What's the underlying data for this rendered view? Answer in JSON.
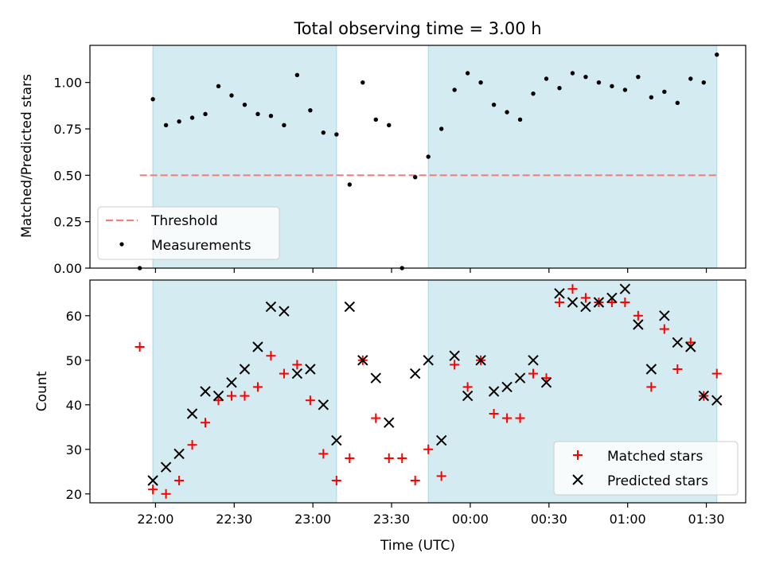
{
  "chart_data": [
    {
      "type": "scatter",
      "title": "Total observing time = 3.00 h",
      "ylabel": "Matched/Predicted stars",
      "ylim": [
        0,
        1.2
      ],
      "yticks": [
        "0.00",
        "0.25",
        "0.50",
        "0.75",
        "1.00"
      ],
      "shaded_intervals": [
        [
          "21:59",
          "23:09"
        ],
        [
          "23:44",
          "01:34"
        ]
      ],
      "threshold": {
        "name": "Threshold",
        "value": 0.5,
        "x_start": "21:54",
        "x_end": "01:34",
        "color": "#f08080"
      },
      "series": [
        {
          "name": "Measurements",
          "marker": "dot",
          "color": "#000000",
          "points": [
            [
              "21:54",
              0.0
            ],
            [
              "21:59",
              0.91
            ],
            [
              "22:04",
              0.77
            ],
            [
              "22:09",
              0.79
            ],
            [
              "22:14",
              0.81
            ],
            [
              "22:19",
              0.83
            ],
            [
              "22:24",
              0.98
            ],
            [
              "22:29",
              0.93
            ],
            [
              "22:34",
              0.88
            ],
            [
              "22:39",
              0.83
            ],
            [
              "22:44",
              0.82
            ],
            [
              "22:49",
              0.77
            ],
            [
              "22:54",
              1.04
            ],
            [
              "22:59",
              0.85
            ],
            [
              "23:04",
              0.73
            ],
            [
              "23:09",
              0.72
            ],
            [
              "23:14",
              0.45
            ],
            [
              "23:19",
              1.0
            ],
            [
              "23:24",
              0.8
            ],
            [
              "23:29",
              0.77
            ],
            [
              "23:34",
              0.0
            ],
            [
              "23:39",
              0.49
            ],
            [
              "23:44",
              0.6
            ],
            [
              "23:49",
              0.75
            ],
            [
              "23:54",
              0.96
            ],
            [
              "23:59",
              1.05
            ],
            [
              "00:04",
              1.0
            ],
            [
              "00:09",
              0.88
            ],
            [
              "00:14",
              0.84
            ],
            [
              "00:19",
              0.8
            ],
            [
              "00:24",
              0.94
            ],
            [
              "00:29",
              1.02
            ],
            [
              "00:34",
              0.97
            ],
            [
              "00:39",
              1.05
            ],
            [
              "00:44",
              1.03
            ],
            [
              "00:49",
              1.0
            ],
            [
              "00:54",
              0.98
            ],
            [
              "00:59",
              0.96
            ],
            [
              "01:04",
              1.03
            ],
            [
              "01:09",
              0.92
            ],
            [
              "01:14",
              0.95
            ],
            [
              "01:19",
              0.89
            ],
            [
              "01:24",
              1.02
            ],
            [
              "01:29",
              1.0
            ],
            [
              "01:34",
              1.15
            ]
          ]
        }
      ],
      "legend": {
        "placement": "lower-left"
      }
    },
    {
      "type": "scatter",
      "xlabel": "Time (UTC)",
      "ylabel": "Count",
      "ylim": [
        18,
        68
      ],
      "yticks": [
        "20",
        "30",
        "40",
        "50",
        "60"
      ],
      "xticks": [
        "22:00",
        "22:30",
        "23:00",
        "23:30",
        "00:00",
        "00:30",
        "01:00",
        "01:30"
      ],
      "shaded_intervals": [
        [
          "21:59",
          "23:09"
        ],
        [
          "23:44",
          "01:34"
        ]
      ],
      "series": [
        {
          "name": "Matched stars",
          "marker": "plus",
          "color": "#ff0000",
          "points": [
            [
              "21:54",
              53
            ],
            [
              "21:59",
              21
            ],
            [
              "22:04",
              20
            ],
            [
              "22:09",
              23
            ],
            [
              "22:14",
              31
            ],
            [
              "22:19",
              36
            ],
            [
              "22:24",
              41
            ],
            [
              "22:29",
              42
            ],
            [
              "22:34",
              42
            ],
            [
              "22:39",
              44
            ],
            [
              "22:44",
              51
            ],
            [
              "22:49",
              47
            ],
            [
              "22:54",
              49
            ],
            [
              "22:59",
              41
            ],
            [
              "23:04",
              29
            ],
            [
              "23:09",
              23
            ],
            [
              "23:14",
              28
            ],
            [
              "23:19",
              50
            ],
            [
              "23:24",
              37
            ],
            [
              "23:29",
              28
            ],
            [
              "23:34",
              28
            ],
            [
              "23:39",
              23
            ],
            [
              "23:44",
              30
            ],
            [
              "23:49",
              24
            ],
            [
              "23:54",
              49
            ],
            [
              "23:59",
              44
            ],
            [
              "00:04",
              50
            ],
            [
              "00:09",
              38
            ],
            [
              "00:14",
              37
            ],
            [
              "00:19",
              37
            ],
            [
              "00:24",
              47
            ],
            [
              "00:29",
              46
            ],
            [
              "00:34",
              63
            ],
            [
              "00:39",
              66
            ],
            [
              "00:44",
              64
            ],
            [
              "00:49",
              63
            ],
            [
              "00:54",
              63
            ],
            [
              "00:59",
              63
            ],
            [
              "01:04",
              60
            ],
            [
              "01:09",
              44
            ],
            [
              "01:14",
              57
            ],
            [
              "01:19",
              48
            ],
            [
              "01:24",
              54
            ],
            [
              "01:29",
              42
            ],
            [
              "01:34",
              47
            ]
          ]
        },
        {
          "name": "Predicted stars",
          "marker": "x",
          "color": "#000000",
          "points": [
            [
              "21:59",
              23
            ],
            [
              "22:04",
              26
            ],
            [
              "22:09",
              29
            ],
            [
              "22:14",
              38
            ],
            [
              "22:19",
              43
            ],
            [
              "22:24",
              42
            ],
            [
              "22:29",
              45
            ],
            [
              "22:34",
              48
            ],
            [
              "22:39",
              53
            ],
            [
              "22:44",
              62
            ],
            [
              "22:49",
              61
            ],
            [
              "22:54",
              47
            ],
            [
              "22:59",
              48
            ],
            [
              "23:04",
              40
            ],
            [
              "23:09",
              32
            ],
            [
              "23:14",
              62
            ],
            [
              "23:19",
              50
            ],
            [
              "23:24",
              46
            ],
            [
              "23:29",
              36
            ],
            [
              "23:39",
              47
            ],
            [
              "23:44",
              50
            ],
            [
              "23:49",
              32
            ],
            [
              "23:54",
              51
            ],
            [
              "23:59",
              42
            ],
            [
              "00:04",
              50
            ],
            [
              "00:09",
              43
            ],
            [
              "00:14",
              44
            ],
            [
              "00:19",
              46
            ],
            [
              "00:24",
              50
            ],
            [
              "00:29",
              45
            ],
            [
              "00:34",
              65
            ],
            [
              "00:39",
              63
            ],
            [
              "00:44",
              62
            ],
            [
              "00:49",
              63
            ],
            [
              "00:54",
              64
            ],
            [
              "00:59",
              66
            ],
            [
              "01:04",
              58
            ],
            [
              "01:09",
              48
            ],
            [
              "01:14",
              60
            ],
            [
              "01:19",
              54
            ],
            [
              "01:24",
              53
            ],
            [
              "01:29",
              42
            ],
            [
              "01:34",
              41
            ]
          ]
        }
      ],
      "legend": {
        "placement": "lower-right"
      }
    }
  ],
  "x_axis": {
    "range": [
      "21:35",
      "01:45"
    ],
    "crosses_midnight": true
  },
  "colors": {
    "shade": "#d4ebf1",
    "shade_edge": "#a9d7e3",
    "threshold": "#f08080",
    "matched": "#ff0000",
    "predicted": "#000000"
  }
}
